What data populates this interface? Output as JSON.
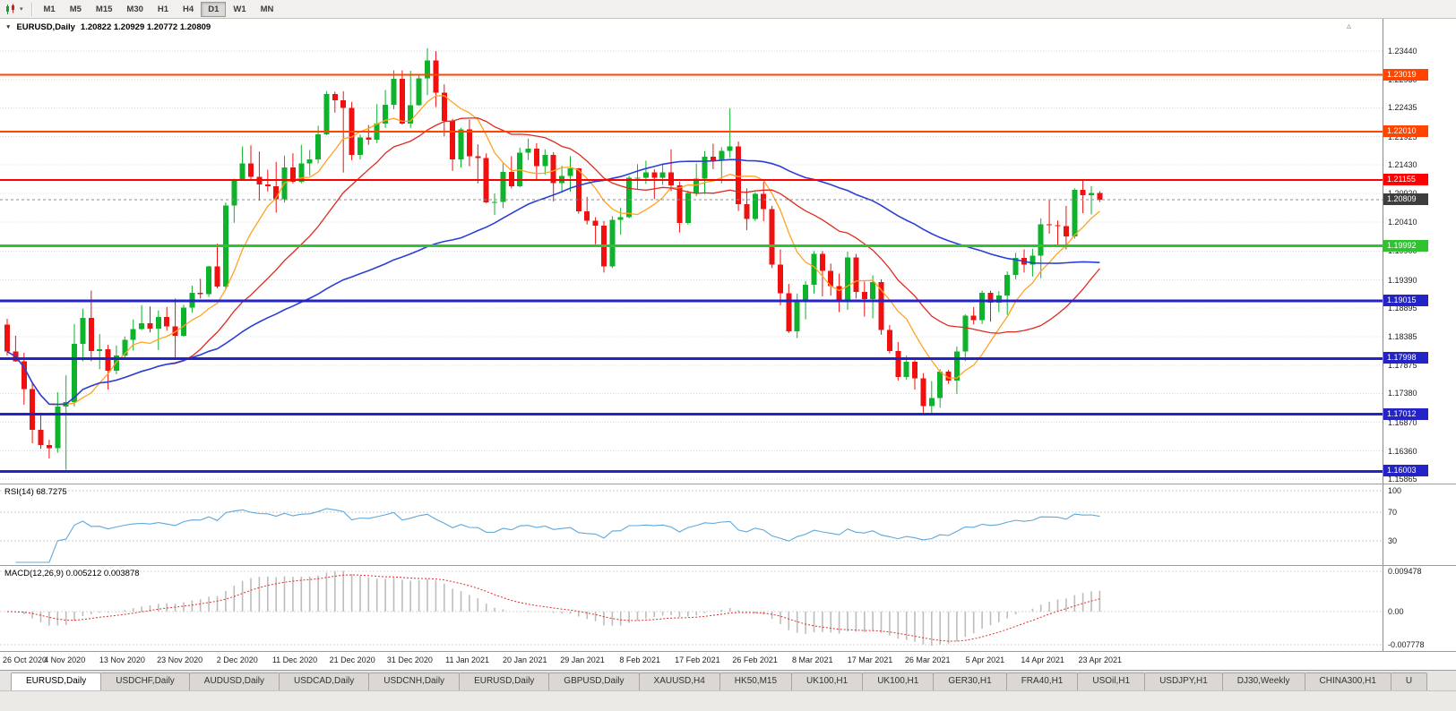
{
  "toolbar": {
    "timeframes": [
      "M1",
      "M5",
      "M15",
      "M30",
      "H1",
      "H4",
      "D1",
      "W1",
      "MN"
    ],
    "active_timeframe": "D1"
  },
  "glyphs": {
    "title_marker": "▼",
    "toolbar_dropdown": "▾",
    "chart_shift": "▵"
  },
  "chart": {
    "symbol": "EURUSD,Daily",
    "ohlc": "1.20822 1.20929 1.20772 1.20809",
    "colors": {
      "bull": "#0CB32B",
      "bear": "#EF1010",
      "grid": "#DADADA",
      "background": "#FFFFFF"
    },
    "price_axis": [
      "1.23440",
      "1.22930",
      "1.22435",
      "1.21925",
      "1.21430",
      "1.20920",
      "1.20410",
      "1.19900",
      "1.19390",
      "1.18895",
      "1.18385",
      "1.17875",
      "1.17380",
      "1.16870",
      "1.16360",
      "1.15865"
    ],
    "hlines": [
      {
        "label": "1.23019",
        "color": "#FF4500",
        "width": 2
      },
      {
        "label": "1.22010",
        "color": "#FF4500",
        "width": 2
      },
      {
        "label": "1.21155",
        "color": "#FF0000",
        "width": 2
      },
      {
        "label": "1.19992",
        "color": "#2FC42F",
        "width": 3
      },
      {
        "label": "1.19015",
        "color": "#2323C8",
        "width": 3
      },
      {
        "label": "1.17998",
        "color": "#2323C8",
        "width": 3
      },
      {
        "label": "1.17012",
        "color": "#2323C8",
        "width": 3
      },
      {
        "label": "1.16003",
        "color": "#2323C8",
        "width": 3
      }
    ],
    "current_price": {
      "label": "1.20809",
      "badge_color": "#3D3D3D",
      "line_color": "#8E8E8E"
    }
  },
  "rsi": {
    "label": "RSI(14) 68.7275",
    "axis_labels": [
      "100",
      "70",
      "30"
    ],
    "line_color": "#5FA8DC"
  },
  "macd": {
    "label": "MACD(12,26,9) 0.005212 0.003878",
    "axis_labels": [
      "0.009478",
      "0.00",
      "-0.007778"
    ],
    "histogram_color": "#BDBDBD",
    "signal_color": "#DF2E2E"
  },
  "time_axis": [
    "26 Oct 2020",
    "4 Nov 2020",
    "13 Nov 2020",
    "23 Nov 2020",
    "2 Dec 2020",
    "11 Dec 2020",
    "21 Dec 2020",
    "31 Dec 2020",
    "11 Jan 2021",
    "20 Jan 2021",
    "29 Jan 2021",
    "8 Feb 2021",
    "17 Feb 2021",
    "26 Feb 2021",
    "8 Mar 2021",
    "17 Mar 2021",
    "26 Mar 2021",
    "5 Apr 2021",
    "14 Apr 2021",
    "23 Apr 2021"
  ],
  "tabs": [
    {
      "label": "EURUSD,Daily",
      "active": true
    },
    {
      "label": "USDCHF,Daily",
      "active": false
    },
    {
      "label": "AUDUSD,Daily",
      "active": false
    },
    {
      "label": "USDCAD,Daily",
      "active": false
    },
    {
      "label": "USDCNH,Daily",
      "active": false
    },
    {
      "label": "EURUSD,Daily",
      "active": false
    },
    {
      "label": "GBPUSD,Daily",
      "active": false
    },
    {
      "label": "XAUUSD,H4",
      "active": false
    },
    {
      "label": "HK50,M15",
      "active": false
    },
    {
      "label": "UK100,H1",
      "active": false
    },
    {
      "label": "UK100,H1",
      "active": false
    },
    {
      "label": "GER30,H1",
      "active": false
    },
    {
      "label": "FRA40,H1",
      "active": false
    },
    {
      "label": "USOil,H1",
      "active": false
    },
    {
      "label": "USDJPY,H1",
      "active": false
    },
    {
      "label": "DJ30,Weekly",
      "active": false
    },
    {
      "label": "CHINA300,H1",
      "active": false
    },
    {
      "label": "U",
      "active": false
    }
  ],
  "chart_data": {
    "type": "candlestick",
    "symbol": "EURUSD",
    "timeframe": "Daily",
    "last_price": 1.20809,
    "price_axis_range": [
      1.15865,
      1.2344
    ],
    "x_tick_labels": [
      "26 Oct 2020",
      "4 Nov 2020",
      "13 Nov 2020",
      "23 Nov 2020",
      "2 Dec 2020",
      "11 Dec 2020",
      "21 Dec 2020",
      "31 Dec 2020",
      "11 Jan 2021",
      "20 Jan 2021",
      "29 Jan 2021",
      "8 Feb 2021",
      "17 Feb 2021",
      "26 Feb 2021",
      "8 Mar 2021",
      "17 Mar 2021",
      "26 Mar 2021",
      "5 Apr 2021",
      "14 Apr 2021",
      "23 Apr 2021"
    ],
    "horizontal_levels": [
      1.23019,
      1.2201,
      1.21155,
      1.19992,
      1.19015,
      1.17998,
      1.17012,
      1.16003
    ],
    "moving_averages": [
      {
        "name": "fast",
        "period": 8,
        "color": "#FFA321",
        "width": 1.3
      },
      {
        "name": "medium",
        "period": 20,
        "color": "#E02A20",
        "width": 1.3
      },
      {
        "name": "slow",
        "period": 55,
        "color": "#2B3FD6",
        "width": 1.6
      }
    ],
    "indicators": [
      {
        "name": "RSI",
        "params": [
          14
        ],
        "value": 68.7275
      },
      {
        "name": "MACD",
        "params": [
          12,
          26,
          9
        ],
        "main": 0.005212,
        "signal": 0.003878
      }
    ],
    "candles": [
      [
        1.186,
        1.187,
        1.1805,
        1.1812
      ],
      [
        1.1812,
        1.184,
        1.1794,
        1.1795
      ],
      [
        1.1795,
        1.181,
        1.1718,
        1.1746
      ],
      [
        1.1746,
        1.1759,
        1.165,
        1.1674
      ],
      [
        1.1674,
        1.1704,
        1.164,
        1.1647
      ],
      [
        1.1647,
        1.1656,
        1.1623,
        1.1641
      ],
      [
        1.1641,
        1.174,
        1.1633,
        1.1715
      ],
      [
        1.1715,
        1.177,
        1.1603,
        1.1723
      ],
      [
        1.1723,
        1.1861,
        1.1715,
        1.1826
      ],
      [
        1.1826,
        1.1888,
        1.1795,
        1.1872
      ],
      [
        1.1872,
        1.192,
        1.1795,
        1.1813
      ],
      [
        1.1813,
        1.1843,
        1.1781,
        1.1816
      ],
      [
        1.1816,
        1.1824,
        1.1745,
        1.1778
      ],
      [
        1.1778,
        1.1823,
        1.1772,
        1.1805
      ],
      [
        1.1805,
        1.1839,
        1.1799,
        1.1833
      ],
      [
        1.1833,
        1.1869,
        1.1814,
        1.1852
      ],
      [
        1.1852,
        1.1894,
        1.185,
        1.1862
      ],
      [
        1.1862,
        1.1892,
        1.1846,
        1.1853
      ],
      [
        1.1853,
        1.1885,
        1.1815,
        1.1873
      ],
      [
        1.1873,
        1.1891,
        1.1849,
        1.1857
      ],
      [
        1.1857,
        1.1906,
        1.18,
        1.184
      ],
      [
        1.184,
        1.1895,
        1.1838,
        1.189
      ],
      [
        1.189,
        1.1929,
        1.1881,
        1.1916
      ],
      [
        1.1916,
        1.1941,
        1.1906,
        1.1914
      ],
      [
        1.1914,
        1.1964,
        1.1909,
        1.1963
      ],
      [
        1.1963,
        1.2003,
        1.1924,
        1.1927
      ],
      [
        1.1927,
        1.2076,
        1.1922,
        1.2071
      ],
      [
        1.2071,
        1.2118,
        1.204,
        1.2115
      ],
      [
        1.2115,
        1.2175,
        1.2114,
        1.2145
      ],
      [
        1.2145,
        1.2177,
        1.2115,
        1.2121
      ],
      [
        1.2121,
        1.2166,
        1.2079,
        1.2108
      ],
      [
        1.2108,
        1.2134,
        1.2095,
        1.2105
      ],
      [
        1.2105,
        1.2148,
        1.2058,
        1.2082
      ],
      [
        1.2082,
        1.2159,
        1.2076,
        1.2138
      ],
      [
        1.2138,
        1.2163,
        1.211,
        1.2113
      ],
      [
        1.2113,
        1.2178,
        1.211,
        1.2145
      ],
      [
        1.2145,
        1.2169,
        1.2123,
        1.2152
      ],
      [
        1.2152,
        1.2212,
        1.2145,
        1.2197
      ],
      [
        1.2197,
        1.2273,
        1.2195,
        1.2268
      ],
      [
        1.2268,
        1.2272,
        1.2235,
        1.2257
      ],
      [
        1.2257,
        1.2273,
        1.2129,
        1.2243
      ],
      [
        1.2243,
        1.2254,
        1.2151,
        1.216
      ],
      [
        1.216,
        1.2196,
        1.2152,
        1.2191
      ],
      [
        1.2191,
        1.2213,
        1.2178,
        1.2187
      ],
      [
        1.2187,
        1.225,
        1.2181,
        1.2216
      ],
      [
        1.2216,
        1.2275,
        1.2208,
        1.2249
      ],
      [
        1.2249,
        1.231,
        1.2241,
        1.2295
      ],
      [
        1.2295,
        1.231,
        1.2214,
        1.2216
      ],
      [
        1.2216,
        1.2309,
        1.2208,
        1.2248
      ],
      [
        1.2248,
        1.2303,
        1.2247,
        1.2296
      ],
      [
        1.2296,
        1.2349,
        1.2266,
        1.2327
      ],
      [
        1.2327,
        1.2344,
        1.2245,
        1.227
      ],
      [
        1.227,
        1.2285,
        1.2193,
        1.222
      ],
      [
        1.222,
        1.2224,
        1.2132,
        1.2152
      ],
      [
        1.2152,
        1.2208,
        1.2138,
        1.2205
      ],
      [
        1.2205,
        1.2223,
        1.214,
        1.2158
      ],
      [
        1.2158,
        1.2179,
        1.211,
        1.2155
      ],
      [
        1.2155,
        1.2163,
        1.2075,
        1.2076
      ],
      [
        1.2076,
        1.2092,
        1.2054,
        1.2077
      ],
      [
        1.2077,
        1.2145,
        1.2066,
        1.213
      ],
      [
        1.213,
        1.2158,
        1.2101,
        1.2105
      ],
      [
        1.2105,
        1.2173,
        1.2103,
        1.2164
      ],
      [
        1.2164,
        1.2189,
        1.2151,
        1.2171
      ],
      [
        1.2171,
        1.2181,
        1.2116,
        1.214
      ],
      [
        1.214,
        1.217,
        1.2125,
        1.216
      ],
      [
        1.216,
        1.2165,
        1.2078,
        1.211
      ],
      [
        1.211,
        1.2141,
        1.2094,
        1.2123
      ],
      [
        1.2123,
        1.2158,
        1.2095,
        1.2136
      ],
      [
        1.2136,
        1.2137,
        1.2056,
        1.206
      ],
      [
        1.206,
        1.2086,
        1.2037,
        1.2044
      ],
      [
        1.2044,
        1.205,
        1.2002,
        1.2035
      ],
      [
        1.2035,
        1.2043,
        1.1952,
        1.1963
      ],
      [
        1.1963,
        1.2052,
        1.196,
        1.2045
      ],
      [
        1.2045,
        1.2067,
        1.2019,
        1.205
      ],
      [
        1.205,
        1.2123,
        1.2048,
        1.212
      ],
      [
        1.212,
        1.2144,
        1.21,
        1.212
      ],
      [
        1.212,
        1.215,
        1.2109,
        1.2129
      ],
      [
        1.2129,
        1.2135,
        1.2082,
        1.212
      ],
      [
        1.212,
        1.2145,
        1.2107,
        1.2129
      ],
      [
        1.2129,
        1.217,
        1.2096,
        1.2106
      ],
      [
        1.2106,
        1.2113,
        1.2023,
        1.204
      ],
      [
        1.204,
        1.2097,
        1.2037,
        1.2093
      ],
      [
        1.2093,
        1.2145,
        1.2087,
        1.2118
      ],
      [
        1.2118,
        1.2167,
        1.2091,
        1.2157
      ],
      [
        1.2157,
        1.218,
        1.2135,
        1.215
      ],
      [
        1.215,
        1.2174,
        1.211,
        1.2167
      ],
      [
        1.2167,
        1.2243,
        1.2155,
        1.2175
      ],
      [
        1.2175,
        1.2184,
        1.2061,
        1.2073
      ],
      [
        1.2073,
        1.2101,
        1.2027,
        1.2047
      ],
      [
        1.2047,
        1.2094,
        1.2043,
        1.2091
      ],
      [
        1.2091,
        1.2113,
        1.2043,
        1.2064
      ],
      [
        1.2064,
        1.207,
        1.196,
        1.1966
      ],
      [
        1.1966,
        1.1993,
        1.1894,
        1.1915
      ],
      [
        1.1915,
        1.1932,
        1.1845,
        1.1848
      ],
      [
        1.1848,
        1.1915,
        1.1836,
        1.19
      ],
      [
        1.19,
        1.1937,
        1.1869,
        1.193
      ],
      [
        1.193,
        1.199,
        1.1915,
        1.1985
      ],
      [
        1.1985,
        1.199,
        1.191,
        1.1955
      ],
      [
        1.1955,
        1.1968,
        1.1911,
        1.1928
      ],
      [
        1.1928,
        1.195,
        1.1882,
        1.19
      ],
      [
        1.19,
        1.1989,
        1.1886,
        1.1979
      ],
      [
        1.1979,
        1.1985,
        1.1906,
        1.1918
      ],
      [
        1.1918,
        1.1936,
        1.1874,
        1.1905
      ],
      [
        1.1905,
        1.1947,
        1.1871,
        1.1935
      ],
      [
        1.1935,
        1.194,
        1.1842,
        1.185
      ],
      [
        1.185,
        1.1859,
        1.1809,
        1.1813
      ],
      [
        1.1813,
        1.1829,
        1.1761,
        1.1767
      ],
      [
        1.1767,
        1.1805,
        1.1762,
        1.1794
      ],
      [
        1.1794,
        1.1797,
        1.1745,
        1.1765
      ],
      [
        1.1765,
        1.1774,
        1.1704,
        1.1716
      ],
      [
        1.1716,
        1.176,
        1.17,
        1.173
      ],
      [
        1.173,
        1.1781,
        1.1713,
        1.1777
      ],
      [
        1.1777,
        1.178,
        1.1755,
        1.1761
      ],
      [
        1.1761,
        1.1821,
        1.1737,
        1.1812
      ],
      [
        1.1812,
        1.1878,
        1.1795,
        1.1876
      ],
      [
        1.1876,
        1.1891,
        1.186,
        1.1868
      ],
      [
        1.1868,
        1.192,
        1.1861,
        1.1916
      ],
      [
        1.1916,
        1.192,
        1.1865,
        1.1899
      ],
      [
        1.1899,
        1.1919,
        1.1882,
        1.1911
      ],
      [
        1.1911,
        1.1954,
        1.1877,
        1.1948
      ],
      [
        1.1948,
        1.1987,
        1.194,
        1.1978
      ],
      [
        1.1978,
        1.1993,
        1.1952,
        1.1966
      ],
      [
        1.1966,
        1.1994,
        1.1945,
        1.1982
      ],
      [
        1.1982,
        1.2048,
        1.1942,
        1.2037
      ],
      [
        1.2037,
        1.208,
        1.2021,
        1.2036
      ],
      [
        1.2036,
        1.2044,
        1.1997,
        1.2034
      ],
      [
        1.2034,
        1.207,
        1.1993,
        1.2016
      ],
      [
        1.2016,
        1.2101,
        1.2012,
        1.2098
      ],
      [
        1.2098,
        1.2117,
        1.2057,
        1.2089
      ],
      [
        1.2089,
        1.2105,
        1.2055,
        1.2093
      ],
      [
        1.2093,
        1.2096,
        1.2077,
        1.2081
      ]
    ]
  }
}
